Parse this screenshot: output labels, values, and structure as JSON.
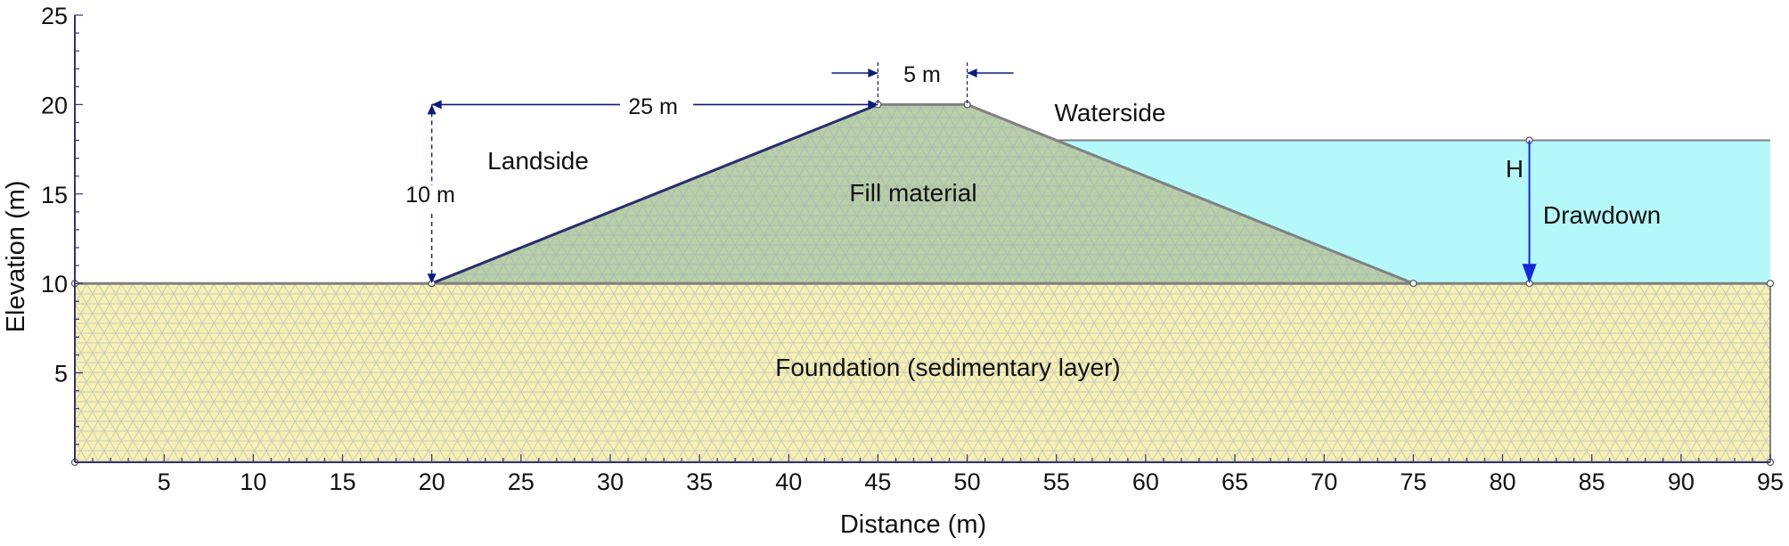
{
  "labels": {
    "landside": "Landside",
    "waterside": "Waterside",
    "fill": "Fill material",
    "foundation": "Foundation (sedimentary layer)",
    "drawdown": "Drawdown",
    "h": "H",
    "dim_crest": "5 m",
    "dim_slope": "25 m",
    "dim_height": "10 m"
  },
  "axes": {
    "xlabel": "Distance (m)",
    "ylabel": "Elevation (m)",
    "xlim": [
      0,
      95
    ],
    "ylim": [
      0,
      25
    ],
    "xticks": [
      5,
      10,
      15,
      20,
      25,
      30,
      35,
      40,
      45,
      50,
      55,
      60,
      65,
      70,
      75,
      80,
      85,
      90,
      95
    ],
    "yticks": [
      5,
      10,
      15,
      20,
      25
    ]
  },
  "geometry": {
    "foundation_top": 10,
    "levee": [
      [
        20,
        10
      ],
      [
        45,
        20
      ],
      [
        50,
        20
      ],
      [
        75,
        10
      ]
    ],
    "water_level": 18,
    "water_start_x": 55,
    "water_end_x": 95,
    "drawdown_x": 81.5
  },
  "colors": {
    "foundation": "#f7f0b5",
    "fill": "#b8cfa8",
    "water": "#b5f8fa",
    "mesh": "#9aa6b3",
    "dimension": "#0b1a7a",
    "drawdown_arrow": "#1428d8",
    "boundary": "#808080"
  }
}
